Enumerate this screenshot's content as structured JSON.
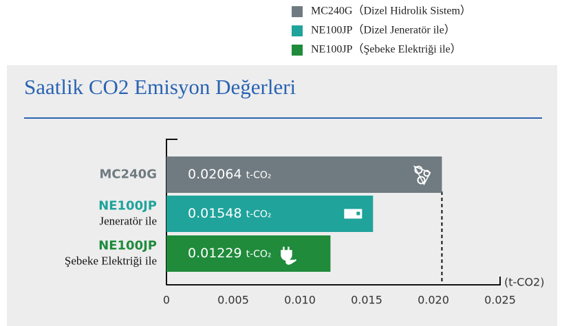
{
  "chart_data": {
    "type": "hbar",
    "title": "Saatlik CO2 Emisyon Değerleri",
    "legend": [
      "MC240G（Dizel Hidrolik Sistem）",
      "NE100JP（Dizel Jeneratör ile）",
      "NE100JP（Şebeke Elektriği ile）"
    ],
    "categories": [
      "MC240G",
      "NE100JP",
      "NE100JP"
    ],
    "category_notes": [
      null,
      "Jeneratör ile",
      "Şebeke Elektriği ile"
    ],
    "values": [
      0.02064,
      0.01548,
      0.01229
    ],
    "value_unit": "t-CO₂",
    "colors": [
      "#6f7b80",
      "#1fa39b",
      "#1f8b3b"
    ],
    "xlabel": "(t-CO2)",
    "xlim": [
      0,
      0.025
    ],
    "xticks": [
      0,
      0.005,
      {
        "value": 0.01,
        "label": "0.010"
      },
      0.015,
      {
        "value": 0.02,
        "label": "0.020"
      },
      0.025
    ]
  }
}
